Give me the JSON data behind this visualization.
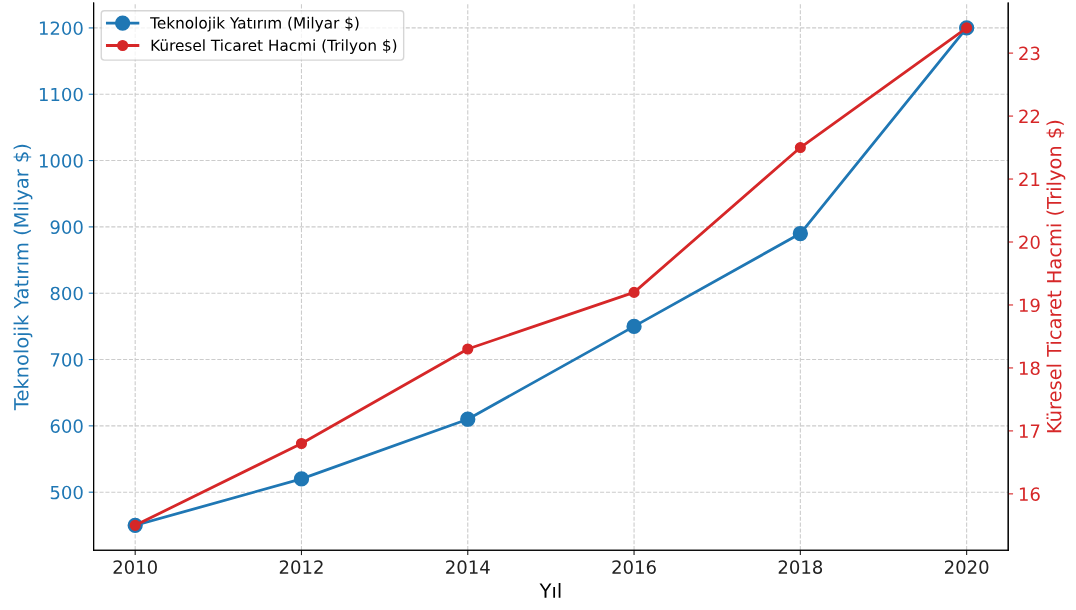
{
  "chart_data": {
    "type": "line",
    "xlabel": "Yıl",
    "ylabel": "Teknolojik Yatırım (Milyar $)",
    "y2label": "Küresel Ticaret Hacmi (Trilyon $)",
    "x": [
      2010,
      2012,
      2014,
      2016,
      2018,
      2020
    ],
    "series": [
      {
        "name": "Teknolojik Yatırım (Milyar $)",
        "color": "#1f77b4",
        "values": [
          450,
          520,
          610,
          750,
          890,
          1200
        ]
      },
      {
        "name": "Küresel Ticaret Hacmi (Trilyon $)",
        "color": "#d62728",
        "axis": "y2",
        "values": [
          15.5,
          16.8,
          18.3,
          19.2,
          21.5,
          23.4
        ]
      }
    ],
    "xlim": [
      2009.5,
      2020.5
    ],
    "xticks": [
      2010,
      2012,
      2014,
      2016,
      2018,
      2020
    ],
    "ylim": [
      412.5,
      1237.5
    ],
    "yticks": [
      500,
      600,
      700,
      800,
      900,
      1000,
      1100,
      1200
    ],
    "y2lim": [
      15.105,
      23.795
    ],
    "y2ticks": [
      16,
      17,
      18,
      19,
      20,
      21,
      22,
      23
    ],
    "grid": true,
    "legend": "top left",
    "marker": "circle",
    "line_style": "solid"
  }
}
